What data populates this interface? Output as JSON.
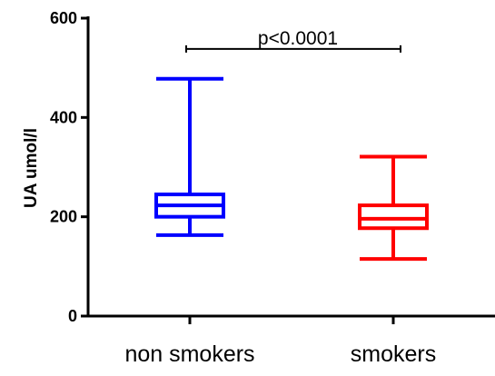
{
  "chart_data": {
    "type": "box",
    "title": "",
    "xlabel": "",
    "ylabel": "UA umol/l",
    "ylim": [
      0,
      600
    ],
    "yticks": [
      0,
      200,
      400,
      600
    ],
    "grid": false,
    "categories": [
      "non smokers",
      "smokers"
    ],
    "series": [
      {
        "category": "non smokers",
        "color": "#0000ff",
        "min": 163,
        "q1": 200,
        "median": 223,
        "q3": 245,
        "max": 478
      },
      {
        "category": "smokers",
        "color": "#ff0000",
        "min": 115,
        "q1": 177,
        "median": 196,
        "q3": 223,
        "max": 321
      }
    ],
    "annotation": {
      "text": "p<0.0001",
      "from": "non smokers",
      "to": "smokers",
      "y": 538
    }
  }
}
